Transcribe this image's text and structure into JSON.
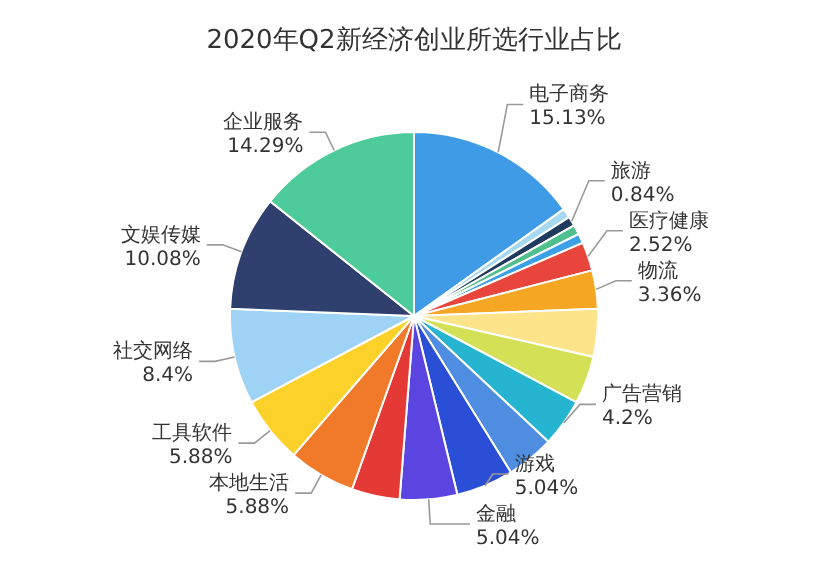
{
  "chart_data": {
    "type": "pie",
    "title": "2020年Q2新经济创业所选行业占比",
    "value_labels": [
      "15.13%",
      null,
      "0.84%",
      null,
      null,
      "2.52%",
      "3.36%",
      null,
      null,
      "4.2%",
      null,
      "5.04%",
      "5.04%",
      null,
      "5.88%",
      "5.88%",
      "8.4%",
      "10.08%",
      "14.29%"
    ],
    "categories": [
      "电子商务",
      null,
      "旅游",
      null,
      null,
      "医疗健康",
      "物流",
      null,
      null,
      "广告营销",
      null,
      "游戏",
      "金融",
      null,
      "本地生活",
      "工具软件",
      "社交网络",
      "文娱传媒",
      "企业服务"
    ],
    "values": [
      15.13,
      0.84,
      0.84,
      0.84,
      0.84,
      2.52,
      3.36,
      4.2,
      4.2,
      4.2,
      4.2,
      5.04,
      5.04,
      4.22,
      5.88,
      5.88,
      8.4,
      10.08,
      14.29
    ],
    "colors": [
      "#3f9be6",
      "#a6d8f0",
      "#1f3a5f",
      "#4fc08d",
      "#3ba0e6",
      "#e8453c",
      "#f5a623",
      "#fde38a",
      "#d4e157",
      "#26b5d0",
      "#4f8de0",
      "#2a4fd6",
      "#5a45e0",
      "#e53935",
      "#f07a2a",
      "#fcd12a",
      "#9fd3f5",
      "#2f3f6e",
      "#4ecb9a"
    ]
  }
}
